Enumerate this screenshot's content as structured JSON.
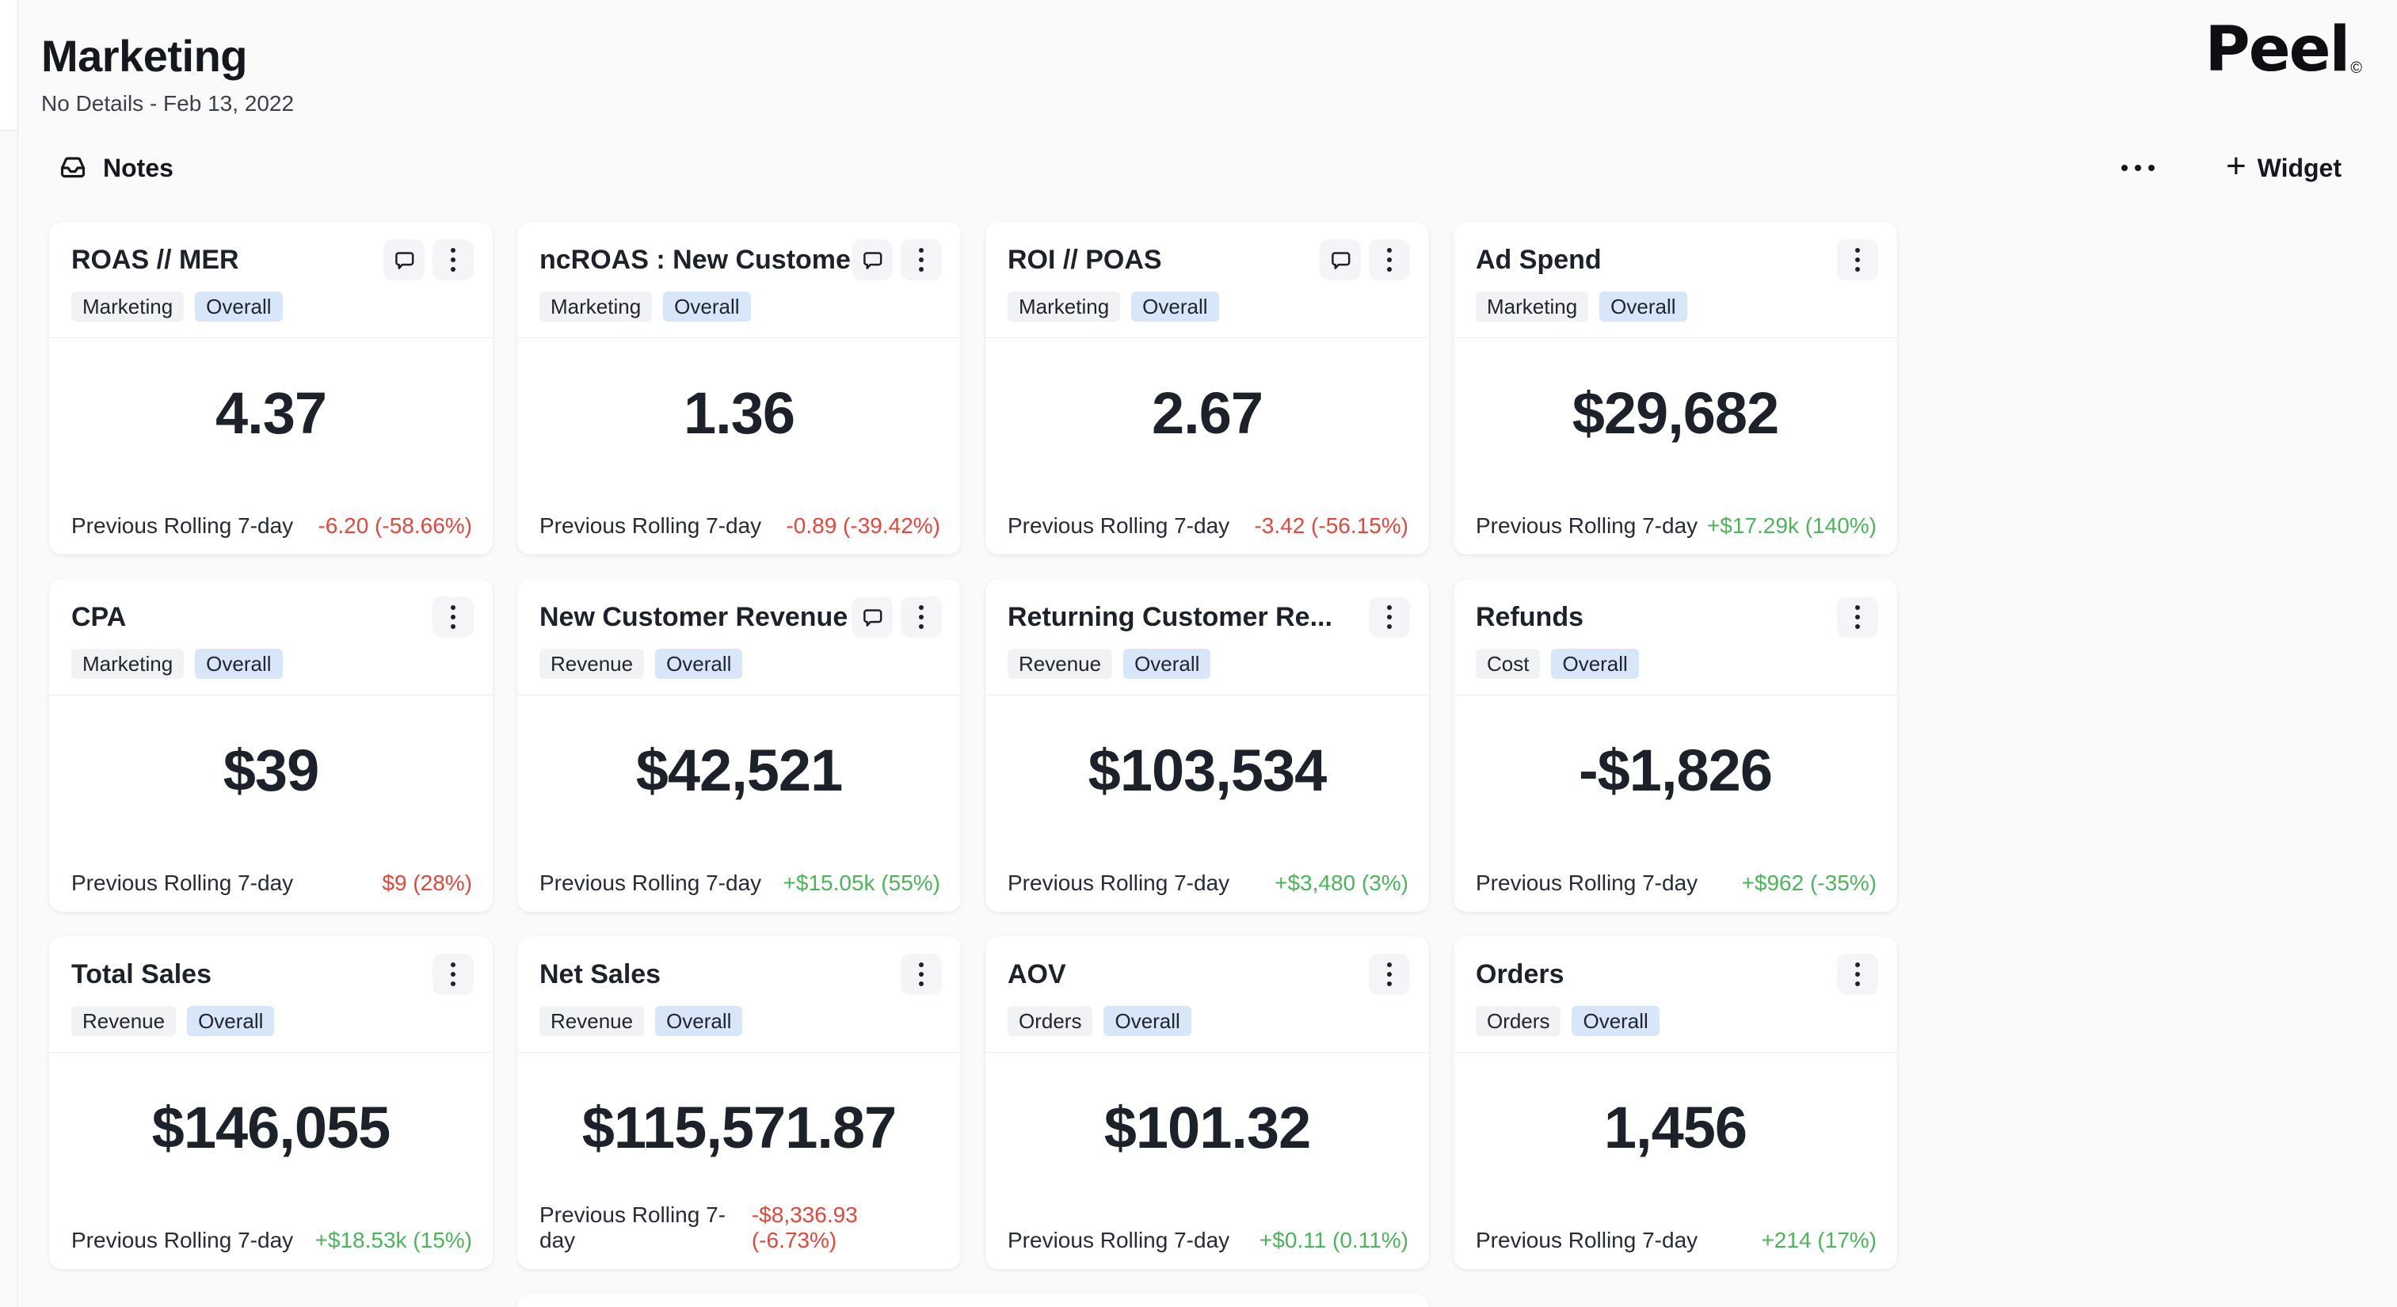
{
  "header": {
    "title": "Marketing",
    "subtitle": "No Details - Feb 13, 2022"
  },
  "brand": {
    "wordmark": "Peel",
    "mark": "©"
  },
  "toolbar": {
    "notes_label": "Notes",
    "widget_label": "Widget",
    "plus": "+"
  },
  "labels": {
    "previous_period": "Previous Rolling 7-day"
  },
  "colors": {
    "positive": "#4cb45a",
    "negative": "#e5463c",
    "badge_blue_bg": "#d8e6f9",
    "badge_gray_bg": "#f1f2f4"
  },
  "icons": {
    "notes": "inbox-icon",
    "comment": "comment-bubble-icon",
    "card_menu": "kebab-menu-icon",
    "more": "ellipsis-icon",
    "add_widget": "plus-icon"
  },
  "cards": [
    {
      "title": "ROAS // MER",
      "has_comment": true,
      "tags": [
        {
          "label": "Marketing",
          "variant": "gray"
        },
        {
          "label": "Overall",
          "variant": "blue"
        }
      ],
      "value": "4.37",
      "change": "-6.20 (-58.66%)",
      "change_dir": "negative"
    },
    {
      "title": "ncROAS : New Custome...",
      "has_comment": true,
      "tags": [
        {
          "label": "Marketing",
          "variant": "gray"
        },
        {
          "label": "Overall",
          "variant": "blue"
        }
      ],
      "value": "1.36",
      "change": "-0.89 (-39.42%)",
      "change_dir": "negative"
    },
    {
      "title": "ROI // POAS",
      "has_comment": true,
      "tags": [
        {
          "label": "Marketing",
          "variant": "gray"
        },
        {
          "label": "Overall",
          "variant": "blue"
        }
      ],
      "value": "2.67",
      "change": "-3.42 (-56.15%)",
      "change_dir": "negative"
    },
    {
      "title": "Ad Spend",
      "has_comment": false,
      "tags": [
        {
          "label": "Marketing",
          "variant": "gray"
        },
        {
          "label": "Overall",
          "variant": "blue"
        }
      ],
      "value": "$29,682",
      "change": "+$17.29k (140%)",
      "change_dir": "positive"
    },
    {
      "title": "CPA",
      "has_comment": false,
      "tags": [
        {
          "label": "Marketing",
          "variant": "gray"
        },
        {
          "label": "Overall",
          "variant": "blue"
        }
      ],
      "value": "$39",
      "change": "$9 (28%)",
      "change_dir": "negative"
    },
    {
      "title": "New Customer Revenue",
      "has_comment": true,
      "tags": [
        {
          "label": "Revenue",
          "variant": "gray"
        },
        {
          "label": "Overall",
          "variant": "blue"
        }
      ],
      "value": "$42,521",
      "change": "+$15.05k (55%)",
      "change_dir": "positive"
    },
    {
      "title": "Returning Customer Re...",
      "has_comment": false,
      "tags": [
        {
          "label": "Revenue",
          "variant": "gray"
        },
        {
          "label": "Overall",
          "variant": "blue"
        }
      ],
      "value": "$103,534",
      "change": "+$3,480 (3%)",
      "change_dir": "positive"
    },
    {
      "title": "Refunds",
      "has_comment": false,
      "tags": [
        {
          "label": "Cost",
          "variant": "gray"
        },
        {
          "label": "Overall",
          "variant": "blue"
        }
      ],
      "value": "-$1,826",
      "change": "+$962 (-35%)",
      "change_dir": "positive"
    },
    {
      "title": "Total Sales",
      "has_comment": false,
      "tags": [
        {
          "label": "Revenue",
          "variant": "gray"
        },
        {
          "label": "Overall",
          "variant": "blue"
        }
      ],
      "value": "$146,055",
      "change": "+$18.53k (15%)",
      "change_dir": "positive"
    },
    {
      "title": "Net Sales",
      "has_comment": false,
      "tags": [
        {
          "label": "Revenue",
          "variant": "gray"
        },
        {
          "label": "Overall",
          "variant": "blue"
        }
      ],
      "value": "$115,571.87",
      "change": "-$8,336.93 (-6.73%)",
      "change_dir": "negative"
    },
    {
      "title": "AOV",
      "has_comment": false,
      "tags": [
        {
          "label": "Orders",
          "variant": "gray"
        },
        {
          "label": "Overall",
          "variant": "blue"
        }
      ],
      "value": "$101.32",
      "change": "+$0.11 (0.11%)",
      "change_dir": "positive"
    },
    {
      "title": "Orders",
      "has_comment": false,
      "tags": [
        {
          "label": "Orders",
          "variant": "gray"
        },
        {
          "label": "Overall",
          "variant": "blue"
        }
      ],
      "value": "1,456",
      "change": "+214 (17%)",
      "change_dir": "positive"
    }
  ]
}
